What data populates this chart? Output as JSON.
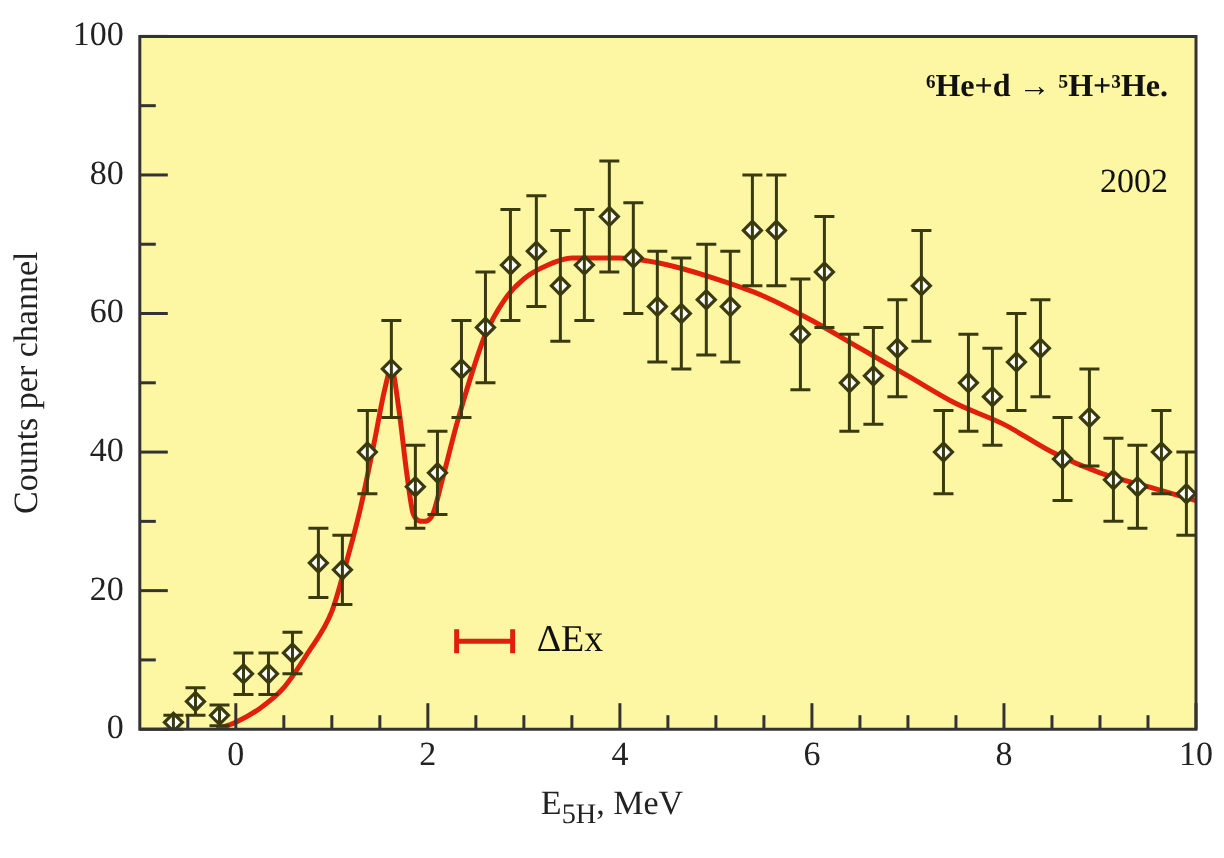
{
  "chart_data": {
    "type": "scatter",
    "xlabel": "E$_{5H}$, MeV",
    "ylabel": "Counts per channel",
    "annotations": [
      "⁶He+d → ⁵H+³He.",
      "2002"
    ],
    "xlim": [
      -1,
      10
    ],
    "xticks": [
      {
        "value": -0.5,
        "label": null
      },
      0,
      {
        "value": 0.5,
        "label": null
      },
      {
        "value": 1,
        "label": null
      },
      {
        "value": 1.5,
        "label": null
      },
      2,
      {
        "value": 2.5,
        "label": null
      },
      {
        "value": 3,
        "label": null
      },
      {
        "value": 3.5,
        "label": null
      },
      4,
      {
        "value": 4.5,
        "label": null
      },
      {
        "value": 5,
        "label": null
      },
      {
        "value": 5.5,
        "label": null
      },
      6,
      {
        "value": 6.5,
        "label": null
      },
      {
        "value": 7,
        "label": null
      },
      {
        "value": 7.5,
        "label": null
      },
      8,
      {
        "value": 8.5,
        "label": null
      },
      {
        "value": 9,
        "label": null
      },
      {
        "value": 9.5,
        "label": null
      },
      10
    ],
    "ylim": [
      0,
      100
    ],
    "yticks": [
      0,
      {
        "value": 10,
        "label": null
      },
      20,
      {
        "value": 30,
        "label": null
      },
      40,
      {
        "value": 50,
        "label": null
      },
      60,
      {
        "value": 70,
        "label": null
      },
      80,
      {
        "value": 90,
        "label": null
      },
      100
    ],
    "grid": false,
    "legend": "bottom left",
    "series": [
      {
        "type": "scatter",
        "color": "#3a3a10",
        "marker": "diamond",
        "x": [
          -0.65,
          -0.42,
          -0.17,
          0.08,
          0.34,
          0.59,
          0.86,
          1.11,
          1.37,
          1.62,
          1.87,
          2.1,
          2.35,
          2.6,
          2.86,
          3.13,
          3.38,
          3.63,
          3.89,
          4.14,
          4.39,
          4.64,
          4.9,
          5.15,
          5.38,
          5.63,
          5.88,
          6.13,
          6.39,
          6.64,
          6.89,
          7.14,
          7.37,
          7.63,
          7.88,
          8.13,
          8.38,
          8.61,
          8.89,
          9.14,
          9.39,
          9.64,
          9.9
        ],
        "values": [
          1,
          4,
          2,
          8,
          8,
          11,
          24,
          23,
          40,
          52,
          35,
          37,
          52,
          58,
          67,
          69,
          64,
          67,
          74,
          68,
          61,
          60,
          62,
          61,
          72,
          72,
          57,
          66,
          50,
          51,
          55,
          64,
          40,
          50,
          48,
          53,
          55,
          39,
          45,
          36,
          35,
          40,
          34
        ],
        "errors": [
          1,
          2,
          1.5,
          3,
          3,
          3,
          5,
          5,
          6,
          7,
          6,
          6,
          7,
          8,
          8,
          8,
          8,
          8,
          8,
          8,
          8,
          8,
          8,
          8,
          8,
          8,
          8,
          8,
          7,
          7,
          7,
          8,
          6,
          7,
          7,
          7,
          7,
          6,
          7,
          6,
          6,
          6,
          6
        ]
      },
      {
        "type": "line",
        "name": "ΔEx",
        "color": "#e0200c",
        "x": [
          -0.2,
          0,
          0.25,
          0.5,
          0.75,
          1,
          1.15,
          1.3,
          1.45,
          1.55,
          1.62,
          1.7,
          1.78,
          1.85,
          1.95,
          2.05,
          2.15,
          2.3,
          2.45,
          2.6,
          2.8,
          3,
          3.25,
          3.5,
          3.75,
          4,
          4.5,
          5,
          5.5,
          6,
          6.5,
          7,
          7.5,
          8,
          8.5,
          9,
          9.5,
          10
        ],
        "values": [
          0,
          1,
          3,
          6,
          11,
          17,
          24,
          32,
          42,
          49,
          52,
          46,
          37,
          31,
          30,
          31,
          36,
          44,
          51,
          57,
          62,
          65,
          67,
          68,
          68,
          68,
          67,
          65,
          62.5,
          59,
          55,
          51,
          47,
          44,
          40,
          37,
          35,
          33
        ]
      }
    ]
  }
}
